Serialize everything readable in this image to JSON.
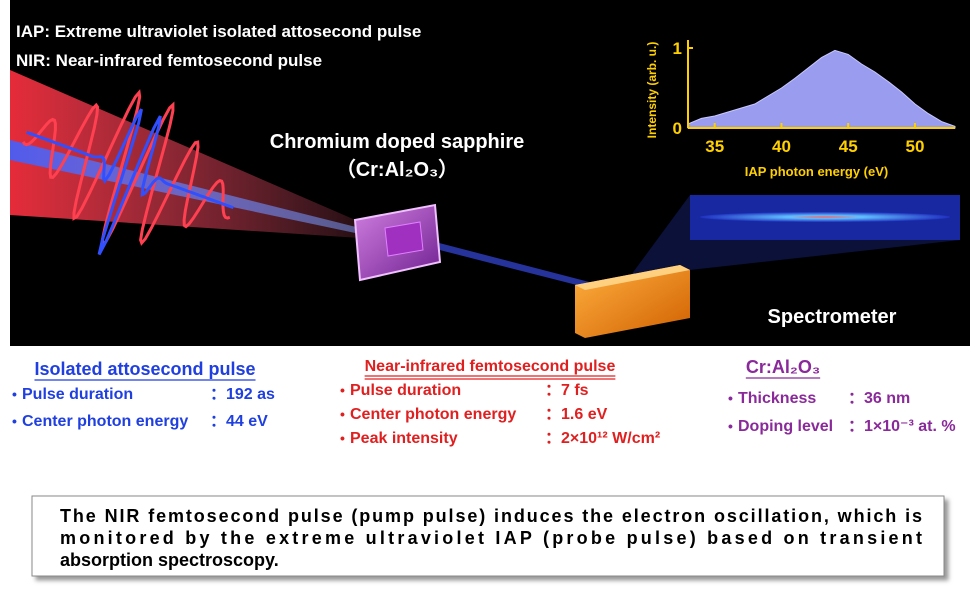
{
  "legend": [
    "IAP: Extreme ultraviolet isolated attosecond pulse",
    "NIR: Near-infrared femtosecond pulse"
  ],
  "sample": {
    "name": "Chromium doped sapphire",
    "formula": "（Cr:Al₂O₃）"
  },
  "spectrometer": "Spectrometer",
  "inset_chart": {
    "type": "area",
    "ylabel": "Intensity (arb. u.)",
    "xlabel": "IAP photon energy (eV)",
    "x": [
      33,
      34,
      35,
      36,
      37,
      38,
      39,
      40,
      41,
      42,
      43,
      44,
      45,
      46,
      47,
      48,
      49,
      50,
      51,
      52,
      53
    ],
    "values": [
      0.05,
      0.12,
      0.15,
      0.2,
      0.25,
      0.3,
      0.4,
      0.5,
      0.62,
      0.75,
      0.88,
      0.97,
      0.92,
      0.8,
      0.7,
      0.58,
      0.45,
      0.3,
      0.18,
      0.08,
      0.02
    ],
    "color": "#9a9cf0",
    "xlim": [
      33,
      53
    ],
    "ylim": [
      0,
      1.1
    ],
    "xticks": [
      35,
      40,
      45,
      50
    ],
    "yticks": [
      0,
      1
    ]
  },
  "params": [
    {
      "title": "Isolated attosecond pulse",
      "items": [
        {
          "label": "Pulse duration",
          "value": "：192 as"
        },
        {
          "label": "Center photon energy",
          "value": "：44 eV"
        }
      ]
    },
    {
      "title": "Near-infrared femtosecond pulse",
      "items": [
        {
          "label": "Pulse duration",
          "value": "：7 fs"
        },
        {
          "label": "Center photon energy",
          "value": "：1.6 eV"
        },
        {
          "label": "Peak intensity",
          "value": "：2×10¹² W/cm²"
        }
      ]
    },
    {
      "title": "Cr:Al₂O₃",
      "items": [
        {
          "label": "Thickness",
          "value": "：36 nm"
        },
        {
          "label": "Doping level",
          "value": "：1×10⁻³ at. %"
        }
      ]
    }
  ],
  "caption": [
    "The NIR femtosecond pulse (pump pulse) induces the electron oscillation, which is",
    "monitored by the extreme ultraviolet IAP (probe pulse) based on transient",
    "absorption spectroscopy."
  ]
}
